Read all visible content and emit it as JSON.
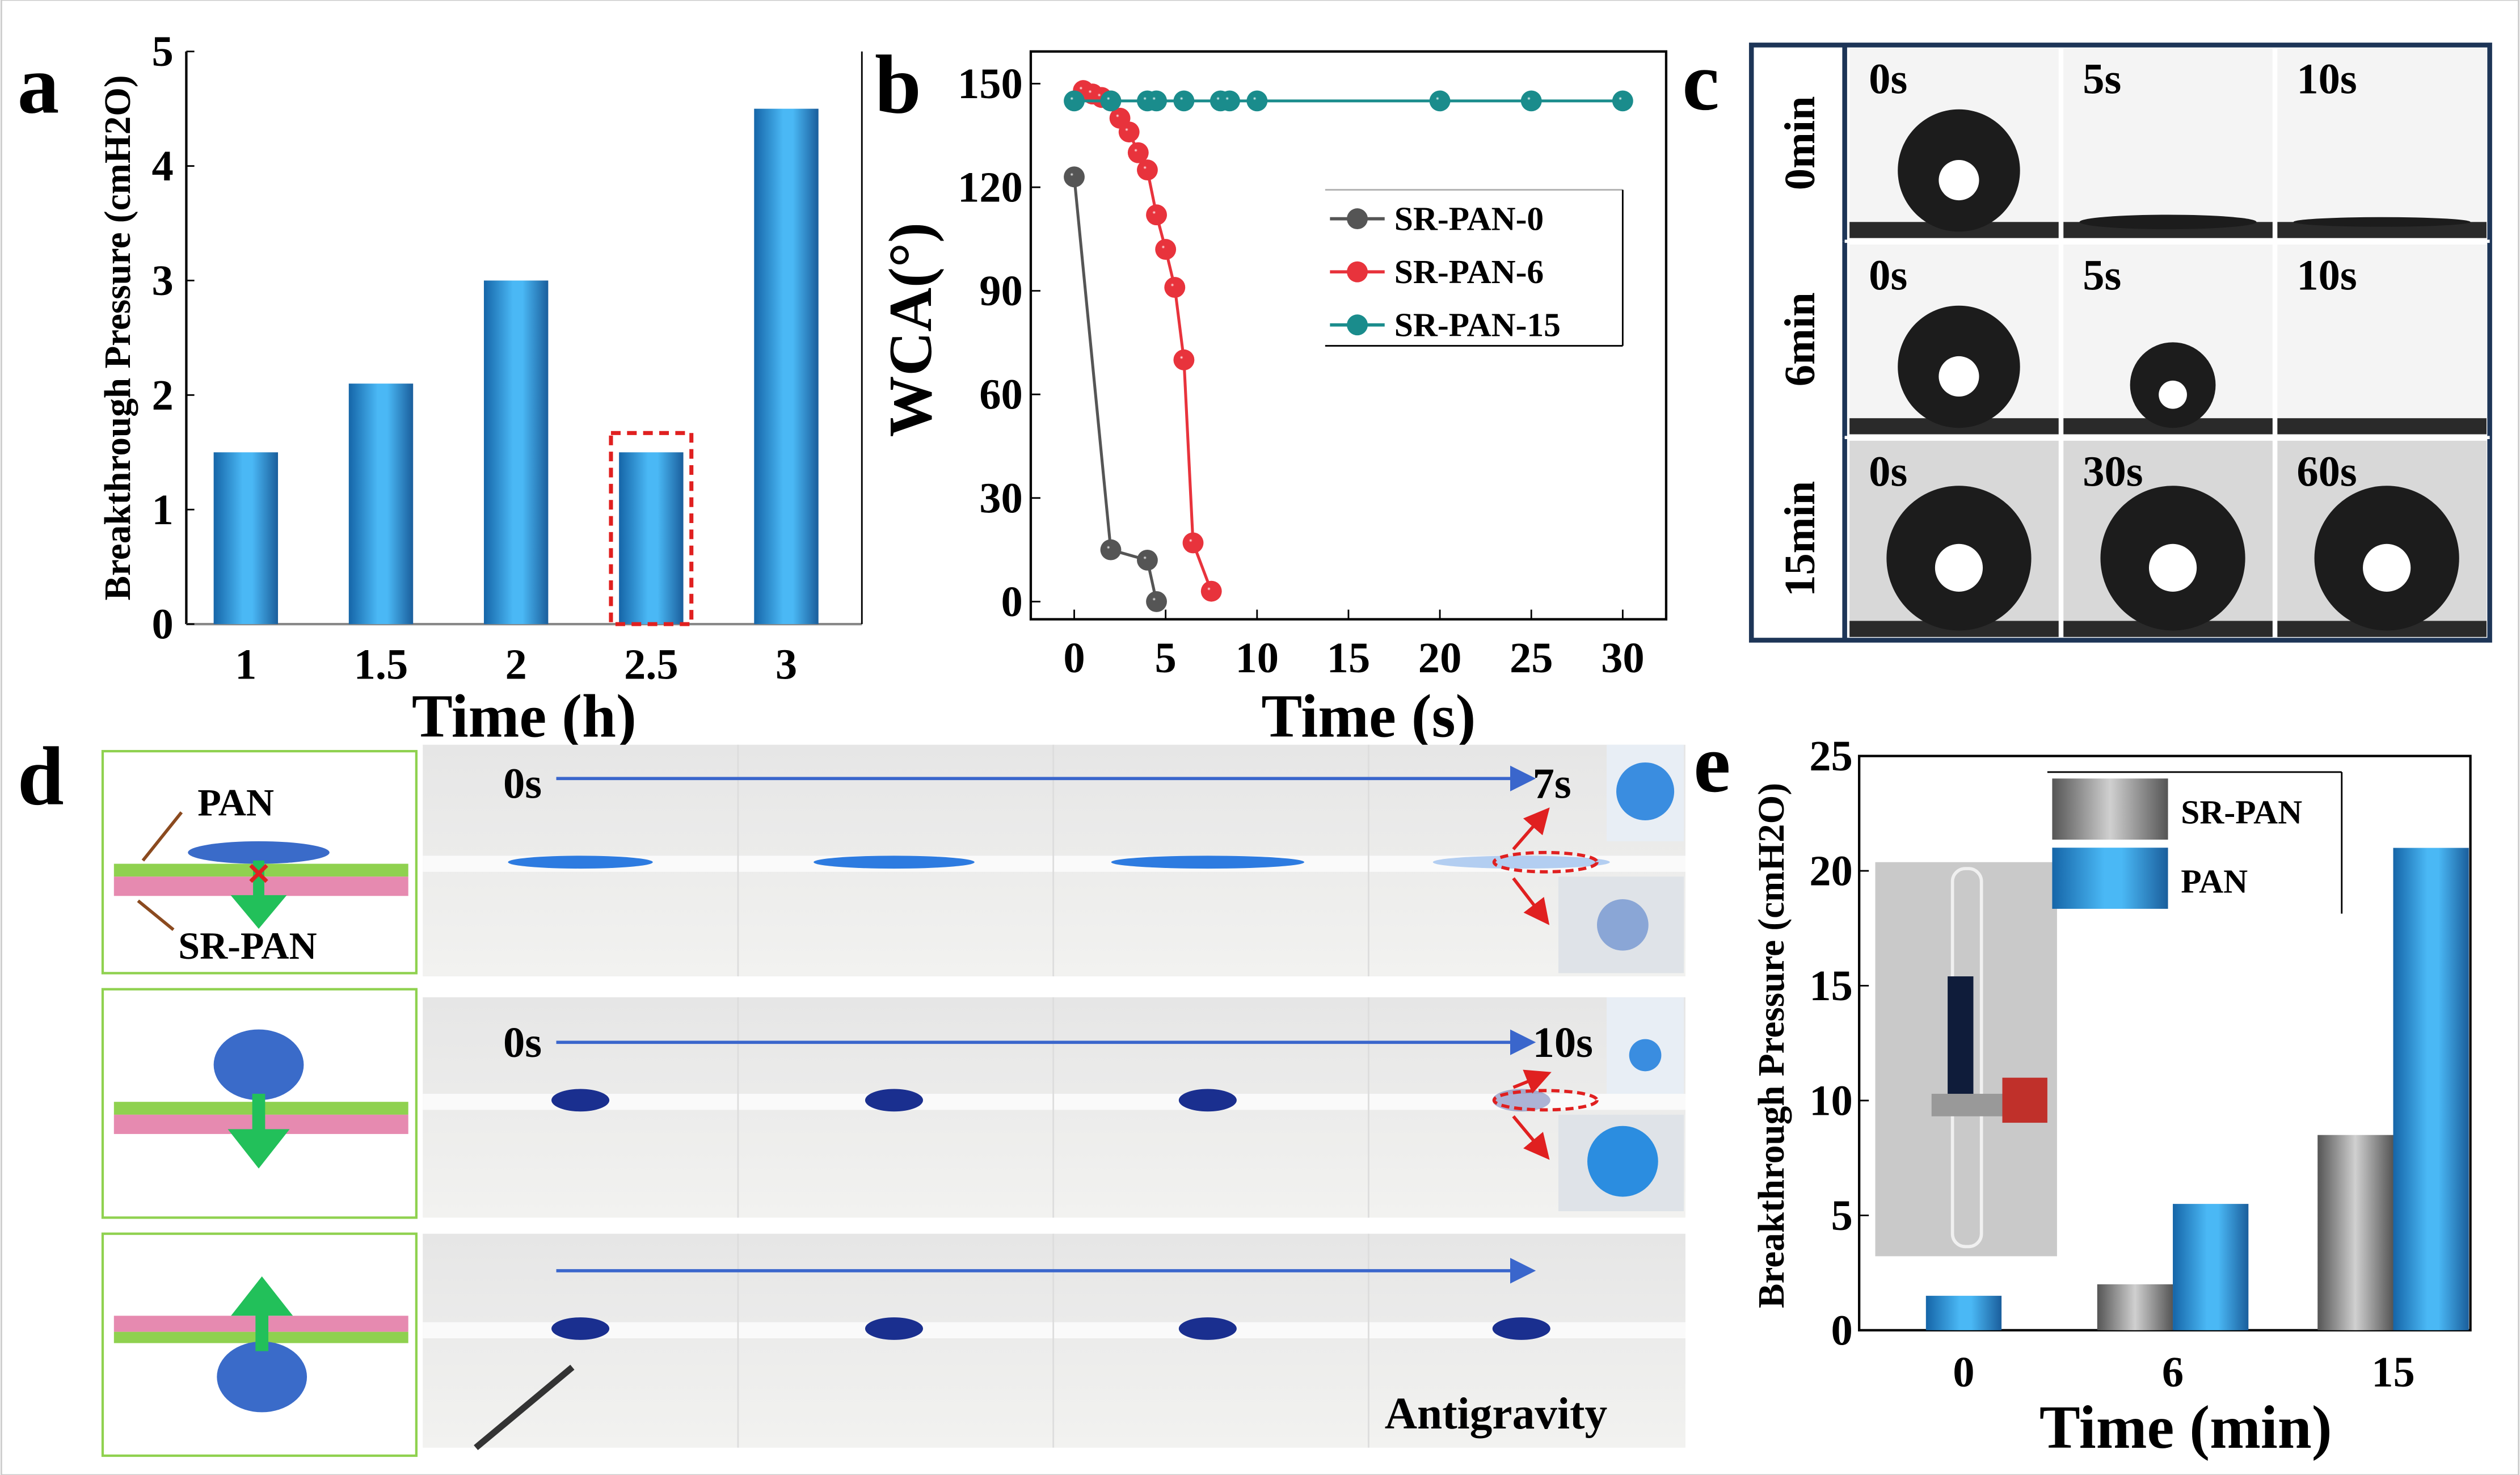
{
  "panels": {
    "a": "a",
    "b": "b",
    "c": "c",
    "d": "d",
    "e": "e"
  },
  "colors": {
    "blue": "#2a9fe6",
    "gray": "#888888",
    "red_dash": "#e02020",
    "sr0": "#555555",
    "sr6": "#e8333c",
    "sr15": "#1a8c8c",
    "arrow": "#3a66cc",
    "green": "#22c05a",
    "pink": "#e68ab0",
    "membrane_green": "#8fd14f",
    "drop": "#3a6bc9"
  },
  "chart_data": [
    {
      "type": "bar",
      "panel": "a",
      "categories": [
        "1",
        "1.5",
        "2",
        "2.5",
        "3"
      ],
      "values": [
        1.5,
        2.1,
        3.0,
        1.5,
        4.5
      ],
      "xlabel": "Time (h)",
      "ylabel": "Breakthrough Pressure (cmH2O)",
      "ylim": [
        0,
        5
      ],
      "yticks": [
        "0",
        "1",
        "2",
        "3",
        "4",
        "5"
      ],
      "highlight": "2.5",
      "grid": false
    },
    {
      "type": "line",
      "panel": "b",
      "xlabel": "Time (s)",
      "ylabel": "WCA(°)",
      "xlim": [
        -1.5,
        32
      ],
      "ylim": [
        -5,
        160
      ],
      "xticks": [
        "0",
        "5",
        "10",
        "15",
        "20",
        "25",
        "30"
      ],
      "yticks": [
        "0",
        "30",
        "60",
        "90",
        "120",
        "150"
      ],
      "legend": "top-right",
      "grid": false,
      "series": [
        {
          "name": "SR-PAN-0",
          "x": [
            0,
            2,
            4,
            4.5
          ],
          "y": [
            123,
            15,
            12,
            0
          ]
        },
        {
          "name": "SR-PAN-6",
          "x": [
            0.5,
            1,
            1.5,
            2,
            2.5,
            3,
            3.5,
            4,
            4.5,
            5,
            5.5,
            6,
            6.5,
            7.5
          ],
          "y": [
            148,
            147,
            146,
            145,
            140,
            136,
            130,
            125,
            112,
            102,
            91,
            70,
            17,
            3
          ]
        },
        {
          "name": "SR-PAN-15",
          "x": [
            0,
            2,
            4,
            4.5,
            6,
            8,
            8.5,
            10,
            20,
            25,
            30
          ],
          "y": [
            145,
            145,
            145,
            145,
            145,
            145,
            145,
            145,
            145,
            145,
            145
          ]
        }
      ]
    },
    {
      "type": "bar",
      "panel": "e",
      "categories": [
        "0",
        "6",
        "15"
      ],
      "series": [
        {
          "name": "SR-PAN",
          "values": [
            0,
            2,
            8.5
          ]
        },
        {
          "name": "PAN",
          "values": [
            1.5,
            5.5,
            21
          ]
        }
      ],
      "xlabel": "Time (min)",
      "ylabel": "Breakthrough Pressure (cmH2O)",
      "ylim": [
        0,
        25
      ],
      "yticks": [
        "0",
        "5",
        "10",
        "15",
        "20",
        "25"
      ],
      "legend": "top",
      "grid": false
    }
  ],
  "panel_c": {
    "rows": [
      {
        "label": "0min",
        "times": [
          "0s",
          "5s",
          "10s"
        ],
        "drop_size": [
          1,
          0.15,
          0.1
        ]
      },
      {
        "label": "6min",
        "times": [
          "0s",
          "5s",
          "10s"
        ],
        "drop_size": [
          1,
          0.7,
          0
        ]
      },
      {
        "label": "15min",
        "times": [
          "0s",
          "30s",
          "60s"
        ],
        "drop_size": [
          1,
          1,
          1
        ]
      }
    ]
  },
  "panel_d": {
    "schematic_labels": {
      "top": "PAN",
      "bottom": "SR-PAN"
    },
    "rows": [
      {
        "start": "0s",
        "end": "7s"
      },
      {
        "start": "0s",
        "end": "10s"
      },
      {
        "caption": "Antigravity"
      }
    ]
  }
}
